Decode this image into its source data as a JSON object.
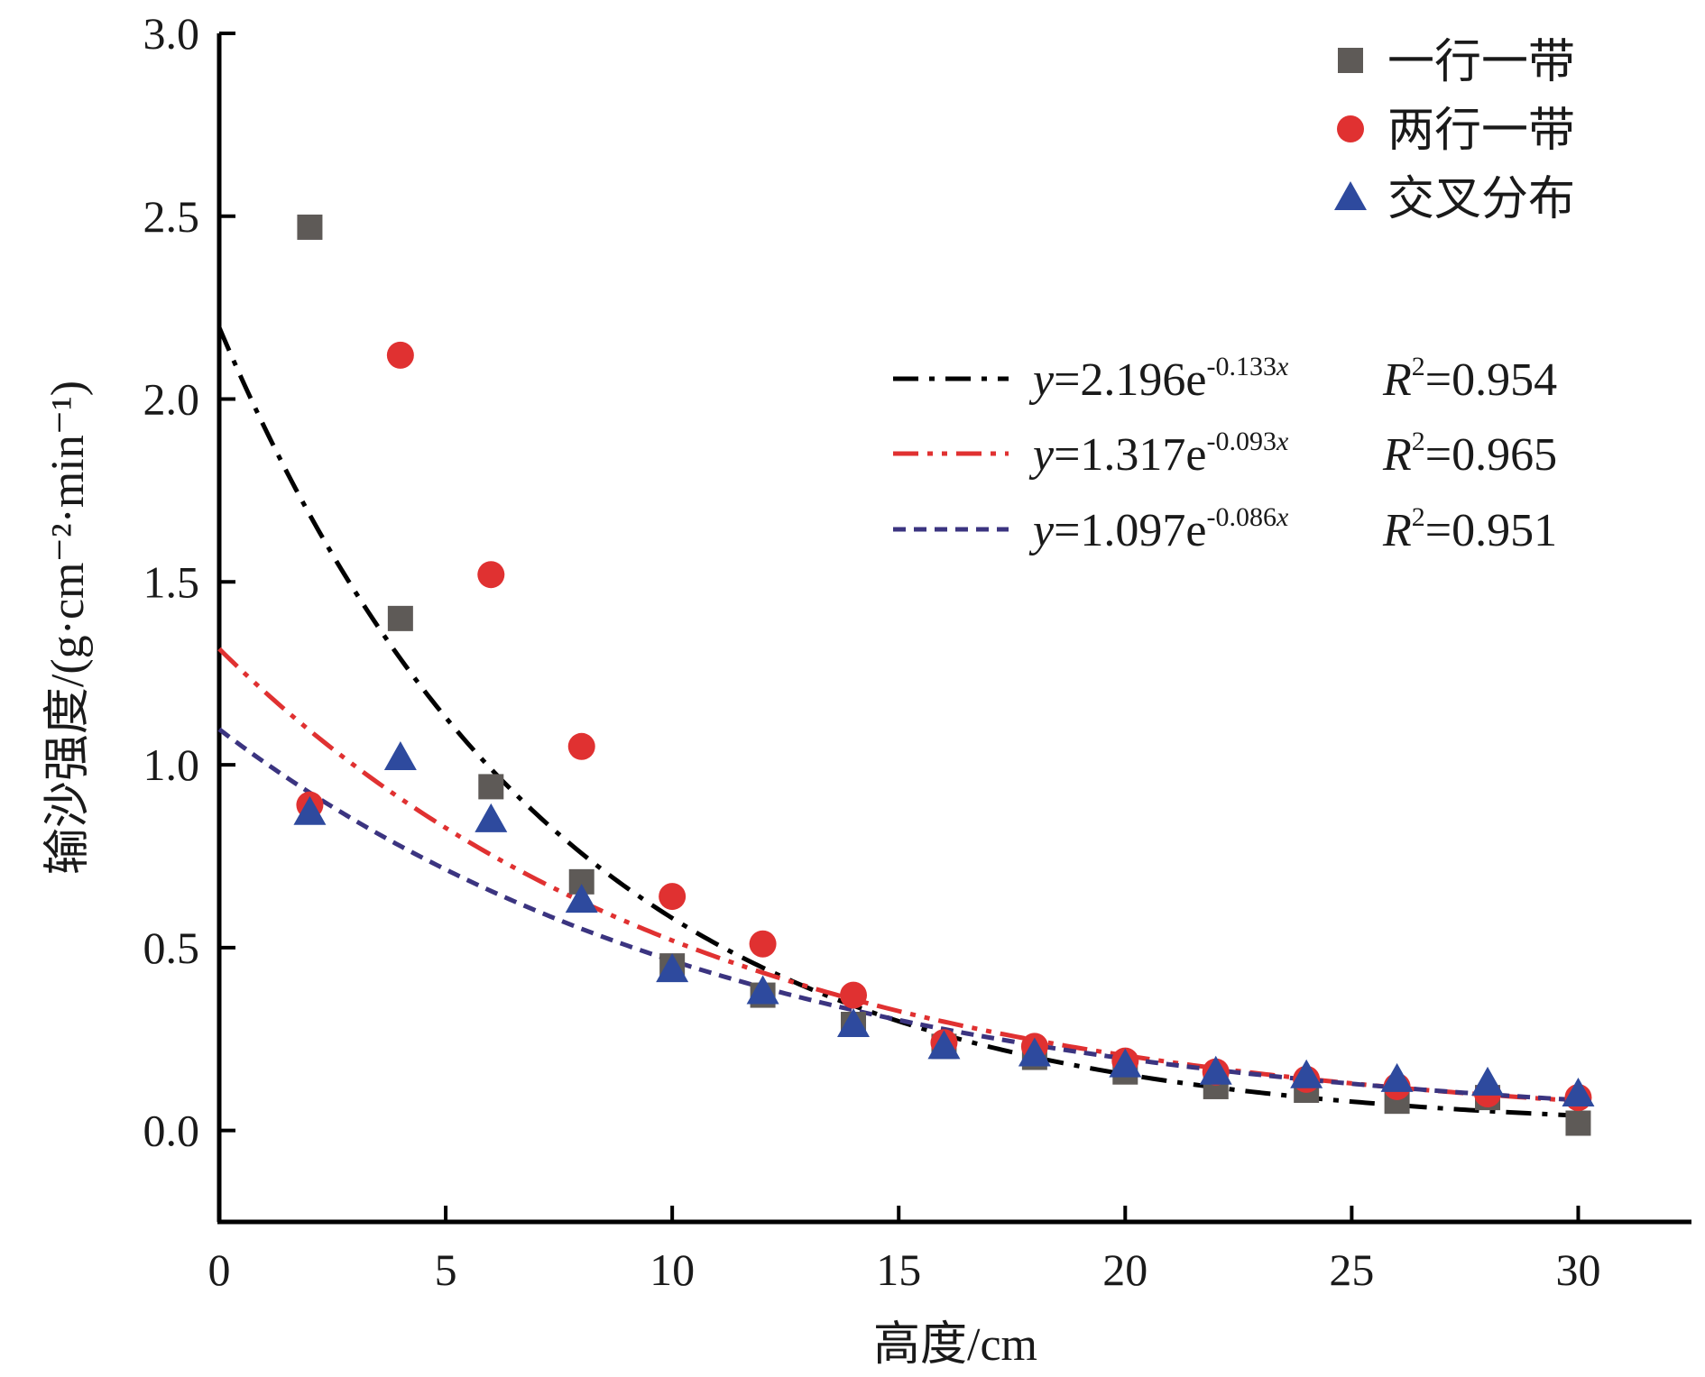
{
  "chart_data": {
    "type": "scatter",
    "xlabel": "高度/cm",
    "ylabel": "输沙强度/(g·cm⁻²·min⁻¹)",
    "xlim": [
      0,
      32.5
    ],
    "ylim": [
      -0.25,
      3.0
    ],
    "xticks": [
      "0",
      "5",
      "10",
      "15",
      "20",
      "25",
      "30"
    ],
    "yticks": [
      "0.0",
      "0.5",
      "1.0",
      "1.5",
      "2.0",
      "2.5",
      "3.0"
    ],
    "grid": false,
    "legend_position": "top-right",
    "series": [
      {
        "name": "一行一带",
        "marker": "square",
        "color": "#5e5a57",
        "x": [
          2,
          4,
          6,
          8,
          10,
          12,
          14,
          16,
          18,
          20,
          22,
          24,
          26,
          28,
          30
        ],
        "y": [
          2.47,
          1.4,
          0.94,
          0.68,
          0.45,
          0.37,
          0.29,
          0.23,
          0.2,
          0.16,
          0.12,
          0.11,
          0.08,
          0.09,
          0.02
        ]
      },
      {
        "name": "两行一带",
        "marker": "circle",
        "color": "#e03131",
        "x": [
          2,
          4,
          6,
          8,
          10,
          12,
          14,
          16,
          18,
          20,
          22,
          24,
          26,
          28,
          30
        ],
        "y": [
          0.89,
          2.12,
          1.52,
          1.05,
          0.64,
          0.51,
          0.37,
          0.24,
          0.23,
          0.19,
          0.16,
          0.14,
          0.12,
          0.1,
          0.09
        ]
      },
      {
        "name": "交叉分布",
        "marker": "triangle",
        "color": "#2e4a9e",
        "x": [
          2,
          4,
          6,
          8,
          10,
          12,
          14,
          16,
          18,
          20,
          22,
          24,
          26,
          28,
          30
        ],
        "y": [
          0.87,
          1.02,
          0.85,
          0.63,
          0.44,
          0.38,
          0.29,
          0.23,
          0.21,
          0.18,
          0.16,
          0.15,
          0.14,
          0.13,
          0.1
        ]
      }
    ],
    "fits": [
      {
        "a": 2.196,
        "b": -0.133,
        "color": "#000000",
        "dash": "dash-dot",
        "equation": {
          "y": "y",
          "eq": "=2.196e",
          "exp": "-0.133",
          "x": "x",
          "r": "R",
          "r_exp": "2",
          "r_val": "=0.954"
        }
      },
      {
        "a": 1.317,
        "b": -0.093,
        "color": "#e03131",
        "dash": "dash-dot-dot",
        "equation": {
          "y": "y",
          "eq": "=1.317e",
          "exp": "-0.093",
          "x": "x",
          "r": "R",
          "r_exp": "2",
          "r_val": "=0.965"
        }
      },
      {
        "a": 1.097,
        "b": -0.086,
        "color": "#3b3480",
        "dash": "short-dash",
        "equation": {
          "y": "y",
          "eq": "=1.097e",
          "exp": "-0.086",
          "x": "x",
          "r": "R",
          "r_exp": "2",
          "r_val": "=0.951"
        }
      }
    ]
  }
}
